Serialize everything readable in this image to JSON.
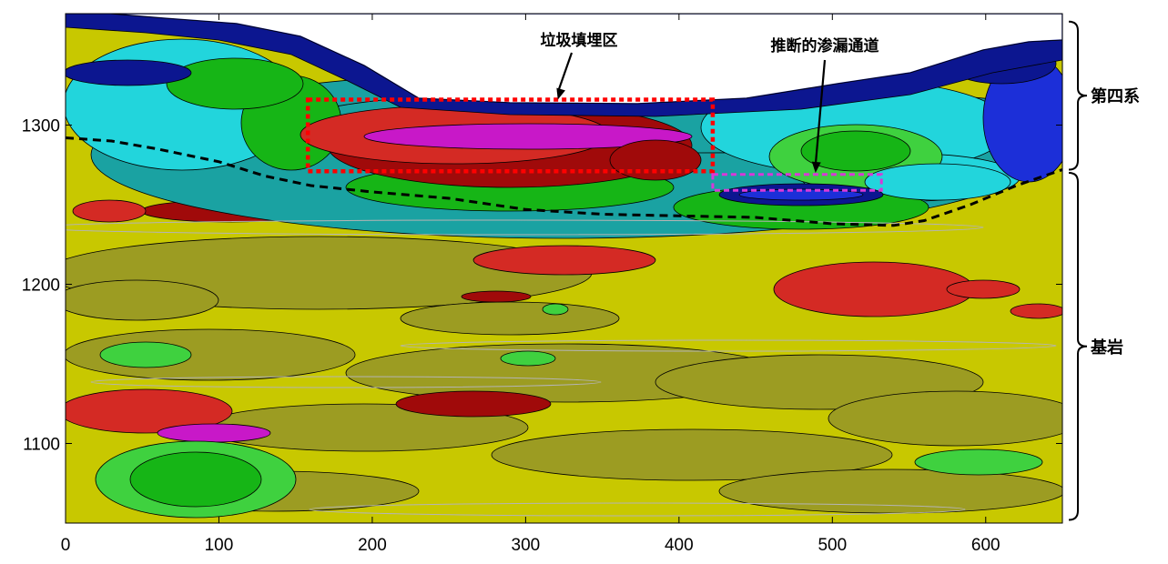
{
  "chart_data": {
    "type": "heatmap",
    "title": "",
    "xlabel": "",
    "ylabel": "",
    "xlim": [
      0,
      650
    ],
    "ylim": [
      1050,
      1370
    ],
    "x_ticks": [
      0,
      100,
      200,
      300,
      400,
      500,
      600
    ],
    "y_ticks": [
      1100,
      1200,
      1300
    ],
    "colors": {
      "base": "#c8c800",
      "olive": "#9c9c22",
      "light_green": "#3fd13f",
      "green": "#16b516",
      "teal": "#1aa2a2",
      "cyan": "#22d5dc",
      "blue": "#1c2fd8",
      "navy": "#0c1690",
      "red": "#d42a24",
      "dark_red": "#a00a0a",
      "magenta": "#c818c8",
      "black_line": "#000000",
      "grey_line": "#b4b4b4"
    },
    "regions": [
      {
        "label": "垃圾填埋区",
        "x_range": [
          158,
          422
        ],
        "y_range": [
          1271,
          1316
        ],
        "outline_color": "#ff0000",
        "outline": "dotted"
      },
      {
        "label": "推断的渗漏通道",
        "x_range": [
          422,
          532
        ],
        "y_range": [
          1259,
          1269
        ],
        "outline_color": "#d838d8",
        "outline": "dashed"
      }
    ],
    "boundary_line": {
      "style": "dashed",
      "color": "#000000",
      "x": [
        0,
        30,
        60,
        100,
        130,
        160,
        200,
        250,
        300,
        350,
        400,
        450,
        500,
        540,
        560,
        590,
        620,
        650
      ],
      "y": [
        1292,
        1290,
        1285,
        1277,
        1268,
        1262,
        1258,
        1254,
        1247,
        1244,
        1243,
        1242,
        1238,
        1237,
        1240,
        1250,
        1262,
        1272
      ]
    },
    "layers": [
      {
        "label": "第四系",
        "y_range": [
          1272,
          1365
        ]
      },
      {
        "label": "基岩",
        "y_range": [
          1052,
          1270
        ]
      }
    ],
    "annotations": [
      {
        "text": "垃圾填埋区",
        "target": [
          321,
          1316
        ]
      },
      {
        "text": "推断的渗漏通道",
        "target": [
          489,
          1270
        ]
      }
    ]
  }
}
